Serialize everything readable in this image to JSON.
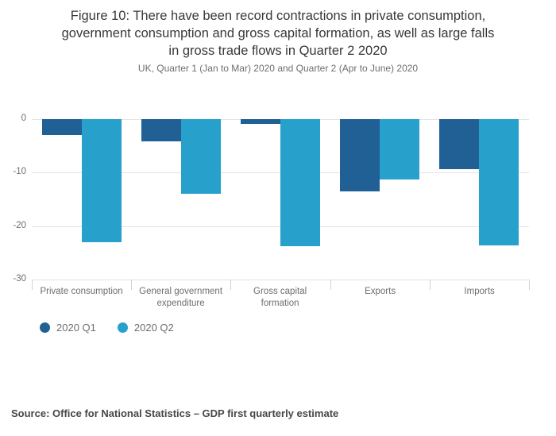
{
  "title_lines": [
    "Figure 10: There have been record contractions in private consumption,",
    "government consumption and gross capital formation, as well as large falls",
    "in gross trade flows in Quarter 2 2020"
  ],
  "subtitle": "UK, Quarter 1 (Jan to Mar) 2020 and Quarter 2 (Apr to June) 2020",
  "source": "Source: Office for National Statistics – GDP first quarterly estimate",
  "colors": {
    "q1_bar": "#206095",
    "q2_bar": "#27a0cc",
    "gridline": "#e4e4e4",
    "axis_tick": "#ccd2dd",
    "text_gray": "#6e6e6e",
    "title_text": "#383838"
  },
  "chart_data": {
    "type": "bar",
    "categories": [
      "Private consumption",
      "General government expenditure",
      "Gross capital formation",
      "Exports",
      "Imports"
    ],
    "series": [
      {
        "name": "2020 Q1",
        "color": "#206095",
        "values": [
          -2.9,
          -4.1,
          -0.9,
          -13.5,
          -9.4
        ]
      },
      {
        "name": "2020 Q2",
        "color": "#27a0cc",
        "values": [
          -23.1,
          -14.0,
          -23.8,
          -11.3,
          -23.6
        ]
      }
    ],
    "title": "Figure 10: There have been record contractions in private consumption, government consumption and gross capital formation, as well as large falls in gross trade flows in Quarter 2 2020",
    "subtitle": "UK, Quarter 1 (Jan to Mar) 2020 and Quarter 2 (Apr to June) 2020",
    "xlabel": "",
    "ylabel": "",
    "ylim": [
      -30,
      0
    ],
    "y_ticks": [
      0,
      -10,
      -20,
      -30
    ],
    "y_tick_labels": [
      "0",
      "-10",
      "-20",
      "-30"
    ],
    "grid": true,
    "legend_position": "bottom-left"
  }
}
